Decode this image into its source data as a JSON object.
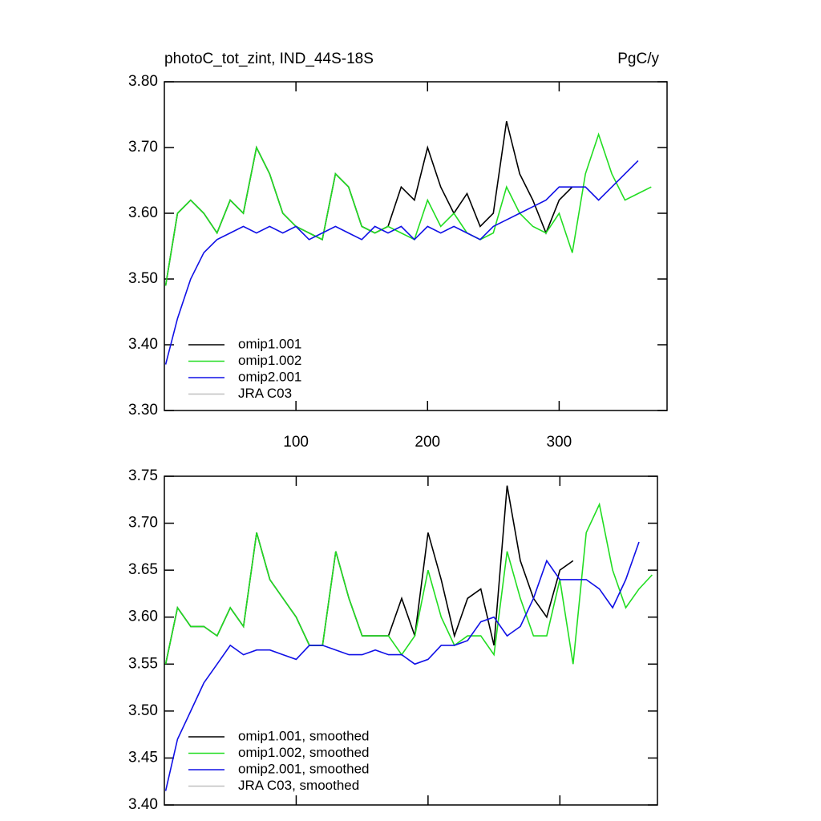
{
  "chart_data": [
    {
      "type": "line",
      "title": "photoC_tot_zint, IND_44S-18S",
      "units": "PgC/y",
      "x": [
        1,
        10,
        20,
        30,
        40,
        50,
        60,
        70,
        80,
        90,
        100,
        110,
        120,
        130,
        140,
        150,
        160,
        170,
        180,
        190,
        200,
        210,
        220,
        230,
        240,
        250,
        260,
        270,
        280,
        290,
        300,
        310,
        320,
        330,
        340,
        350,
        360,
        370
      ],
      "xlim": [
        0,
        382
      ],
      "xticks": [
        100,
        200,
        300
      ],
      "ylim": [
        3.3,
        3.8
      ],
      "yticks": [
        {
          "value": 3.3,
          "label": "3.30"
        },
        {
          "value": 3.4,
          "label": "3.40"
        },
        {
          "value": 3.5,
          "label": "3.50"
        },
        {
          "value": 3.6,
          "label": "3.60"
        },
        {
          "value": 3.7,
          "label": "3.70"
        },
        {
          "value": 3.8,
          "label": "3.80"
        }
      ],
      "series": [
        {
          "name": "omip1.001",
          "color": "#000000",
          "values": [
            3.49,
            3.6,
            3.62,
            3.6,
            3.57,
            3.62,
            3.6,
            3.7,
            3.66,
            3.6,
            3.58,
            3.57,
            3.56,
            3.66,
            3.64,
            3.58,
            3.57,
            3.58,
            3.64,
            3.62,
            3.7,
            3.64,
            3.6,
            3.63,
            3.58,
            3.6,
            3.74,
            3.66,
            3.62,
            3.57,
            3.62,
            3.64,
            null,
            null,
            null,
            null,
            null,
            null
          ]
        },
        {
          "name": "omip1.002",
          "color": "#22dd22",
          "values": [
            3.49,
            3.6,
            3.62,
            3.6,
            3.57,
            3.62,
            3.6,
            3.7,
            3.66,
            3.6,
            3.58,
            3.57,
            3.56,
            3.66,
            3.64,
            3.58,
            3.57,
            3.58,
            3.57,
            3.56,
            3.62,
            3.58,
            3.6,
            3.57,
            3.56,
            3.57,
            3.64,
            3.6,
            3.58,
            3.57,
            3.6,
            3.54,
            3.66,
            3.72,
            3.66,
            3.62,
            3.63,
            3.64
          ]
        },
        {
          "name": "omip2.001",
          "color": "#1010e6",
          "values": [
            3.37,
            3.44,
            3.5,
            3.54,
            3.56,
            3.57,
            3.58,
            3.57,
            3.58,
            3.57,
            3.58,
            3.56,
            3.57,
            3.58,
            3.57,
            3.56,
            3.58,
            3.57,
            3.58,
            3.56,
            3.58,
            3.57,
            3.58,
            3.57,
            3.56,
            3.58,
            3.59,
            3.6,
            3.61,
            3.62,
            3.64,
            3.64,
            3.64,
            3.62,
            3.64,
            3.66,
            3.68,
            null
          ]
        },
        {
          "name": "JRA C03",
          "color": "#c0c0c0",
          "values": [
            null,
            null,
            null,
            null,
            null,
            null,
            null,
            null,
            null,
            null,
            null,
            null,
            null,
            null,
            null,
            null,
            null,
            null,
            null,
            null,
            null,
            null,
            null,
            null,
            null,
            null,
            null,
            null,
            null,
            null,
            null,
            null,
            null,
            null,
            null,
            null,
            null,
            null
          ]
        }
      ]
    },
    {
      "type": "line",
      "x": [
        1,
        10,
        20,
        30,
        40,
        50,
        60,
        70,
        80,
        90,
        100,
        110,
        120,
        130,
        140,
        150,
        160,
        170,
        180,
        190,
        200,
        210,
        220,
        230,
        240,
        250,
        260,
        270,
        280,
        290,
        300,
        310,
        320,
        330,
        340,
        350,
        360,
        370
      ],
      "xlim": [
        0,
        374
      ],
      "xticks": [
        100,
        200,
        300
      ],
      "ylim": [
        3.4,
        3.75
      ],
      "yticks": [
        {
          "value": 3.4,
          "label": "3.40"
        },
        {
          "value": 3.45,
          "label": "3.45"
        },
        {
          "value": 3.5,
          "label": "3.50"
        },
        {
          "value": 3.55,
          "label": "3.55"
        },
        {
          "value": 3.6,
          "label": "3.60"
        },
        {
          "value": 3.65,
          "label": "3.65"
        },
        {
          "value": 3.7,
          "label": "3.70"
        },
        {
          "value": 3.75,
          "label": "3.75"
        }
      ],
      "series": [
        {
          "name": "omip1.001, smoothed",
          "color": "#000000",
          "values": [
            3.55,
            3.61,
            3.59,
            3.59,
            3.58,
            3.61,
            3.59,
            3.69,
            3.64,
            3.62,
            3.6,
            3.57,
            3.57,
            3.67,
            3.62,
            3.58,
            3.58,
            3.58,
            3.62,
            3.58,
            3.69,
            3.64,
            3.58,
            3.62,
            3.63,
            3.57,
            3.74,
            3.66,
            3.62,
            3.6,
            3.65,
            3.66,
            null,
            null,
            null,
            null,
            null,
            null
          ]
        },
        {
          "name": "omip1.002, smoothed",
          "color": "#22dd22",
          "values": [
            3.55,
            3.61,
            3.59,
            3.59,
            3.58,
            3.61,
            3.59,
            3.69,
            3.64,
            3.62,
            3.6,
            3.57,
            3.57,
            3.67,
            3.62,
            3.58,
            3.58,
            3.58,
            3.56,
            3.58,
            3.65,
            3.6,
            3.57,
            3.58,
            3.58,
            3.56,
            3.67,
            3.62,
            3.58,
            3.58,
            3.64,
            3.55,
            3.69,
            3.72,
            3.65,
            3.61,
            3.63,
            3.645
          ]
        },
        {
          "name": "omip2.001, smoothed",
          "color": "#1010e6",
          "values": [
            3.415,
            3.47,
            3.5,
            3.53,
            3.55,
            3.57,
            3.56,
            3.565,
            3.565,
            3.56,
            3.555,
            3.57,
            3.57,
            3.565,
            3.56,
            3.56,
            3.565,
            3.56,
            3.56,
            3.55,
            3.555,
            3.57,
            3.57,
            3.575,
            3.595,
            3.6,
            3.58,
            3.59,
            3.62,
            3.66,
            3.64,
            3.64,
            3.64,
            3.63,
            3.61,
            3.64,
            3.68,
            null
          ]
        },
        {
          "name": "JRA C03, smoothed",
          "color": "#c0c0c0",
          "values": [
            null,
            null,
            null,
            null,
            null,
            null,
            null,
            null,
            null,
            null,
            null,
            null,
            null,
            null,
            null,
            null,
            null,
            null,
            null,
            null,
            null,
            null,
            null,
            null,
            null,
            null,
            null,
            null,
            null,
            null,
            null,
            null,
            null,
            null,
            null,
            null,
            null,
            null
          ]
        }
      ]
    }
  ]
}
